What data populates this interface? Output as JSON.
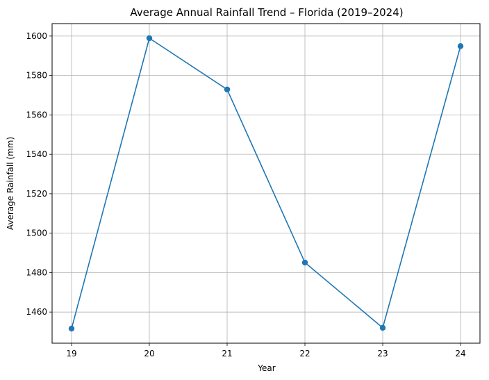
{
  "chart_data": {
    "type": "line",
    "title": "Average Annual Rainfall Trend – Florida (2019–2024)",
    "xlabel": "Year",
    "ylabel": "Average Rainfall (mm)",
    "x": [
      19,
      20,
      21,
      22,
      23,
      24
    ],
    "x_ticks": [
      "19",
      "20",
      "21",
      "22",
      "23",
      "24"
    ],
    "y_ticks": [
      1460,
      1480,
      1500,
      1520,
      1540,
      1560,
      1580,
      1600
    ],
    "xlim": [
      18.75,
      24.25
    ],
    "ylim": [
      1444.2,
      1606.3
    ],
    "grid": true,
    "series": [
      {
        "values": [
          1451.6,
          1598.9,
          1572.9,
          1485.1,
          1452.0,
          1594.9
        ],
        "color": "#1f77b4",
        "marker": "circle"
      }
    ]
  }
}
